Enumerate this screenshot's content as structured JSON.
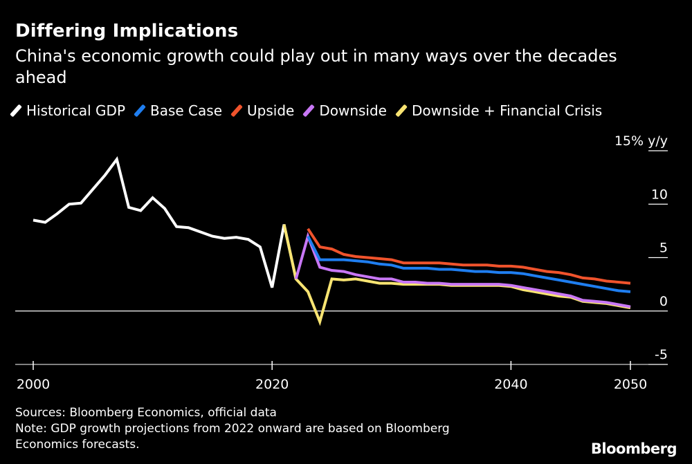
{
  "header": {
    "title": "Differing Implications",
    "subtitle": "China's economic growth could play out in many ways over the decades ahead"
  },
  "footer": {
    "sources": "Sources: Bloomberg Economics, official data",
    "note_line1": "Note: GDP growth projections from 2022 onward are based on Bloomberg",
    "note_line2": "Economics forecasts.",
    "brand": "Bloomberg"
  },
  "chart_data": {
    "type": "line",
    "ylim": [
      -5,
      15
    ],
    "xlim": [
      1999,
      2052
    ],
    "y_ticks": [
      {
        "value": 15,
        "label": "15% y/y"
      },
      {
        "value": 10,
        "label": "10"
      },
      {
        "value": 5,
        "label": "5"
      },
      {
        "value": 0,
        "label": "0"
      },
      {
        "value": -5,
        "label": "-5"
      }
    ],
    "x_ticks": [
      {
        "value": 2000,
        "label": "2000"
      },
      {
        "value": 2020,
        "label": "2020"
      },
      {
        "value": 2040,
        "label": "2040"
      },
      {
        "value": 2050,
        "label": "2050"
      }
    ],
    "legend_position": "top",
    "series": [
      {
        "name": "Historical GDP",
        "color": "#ffffff",
        "x": [
          2000,
          2001,
          2002,
          2003,
          2004,
          2005,
          2006,
          2007,
          2008,
          2009,
          2010,
          2011,
          2012,
          2013,
          2014,
          2015,
          2016,
          2017,
          2018,
          2019,
          2020,
          2021,
          2022
        ],
        "y": [
          8.5,
          8.3,
          9.1,
          10.0,
          10.1,
          11.4,
          12.7,
          14.2,
          9.7,
          9.4,
          10.6,
          9.6,
          7.9,
          7.8,
          7.4,
          7.0,
          6.8,
          6.9,
          6.7,
          6.0,
          2.2,
          8.1,
          3.0
        ]
      },
      {
        "name": "Downside + Financial Crisis",
        "color": "#f8e472",
        "x": [
          2021,
          2022,
          2023,
          2024,
          2025,
          2026,
          2027,
          2028,
          2029,
          2030,
          2031,
          2032,
          2033,
          2034,
          2035,
          2036,
          2037,
          2038,
          2039,
          2040,
          2041,
          2042,
          2043,
          2044,
          2045,
          2046,
          2047,
          2048,
          2049,
          2050
        ],
        "y": [
          8.1,
          3.0,
          1.8,
          -1.0,
          3.0,
          2.9,
          3.0,
          2.8,
          2.6,
          2.6,
          2.5,
          2.5,
          2.5,
          2.5,
          2.4,
          2.4,
          2.4,
          2.4,
          2.4,
          2.3,
          2.0,
          1.8,
          1.6,
          1.4,
          1.3,
          0.9,
          0.8,
          0.7,
          0.5,
          0.3
        ]
      },
      {
        "name": "Downside",
        "color": "#c877f5",
        "x": [
          2022,
          2023,
          2024,
          2025,
          2026,
          2027,
          2028,
          2029,
          2030,
          2031,
          2032,
          2033,
          2034,
          2035,
          2036,
          2037,
          2038,
          2039,
          2040,
          2041,
          2042,
          2043,
          2044,
          2045,
          2046,
          2047,
          2048,
          2049,
          2050
        ],
        "y": [
          3.0,
          7.0,
          4.1,
          3.8,
          3.7,
          3.4,
          3.2,
          3.0,
          3.0,
          2.7,
          2.7,
          2.6,
          2.6,
          2.5,
          2.5,
          2.5,
          2.5,
          2.5,
          2.4,
          2.2,
          2.0,
          1.8,
          1.6,
          1.4,
          1.0,
          0.9,
          0.8,
          0.6,
          0.4
        ]
      },
      {
        "name": "Base Case",
        "color": "#1f7ef0",
        "x": [
          2023,
          2024,
          2025,
          2026,
          2027,
          2028,
          2029,
          2030,
          2031,
          2032,
          2033,
          2034,
          2035,
          2036,
          2037,
          2038,
          2039,
          2040,
          2041,
          2042,
          2043,
          2044,
          2045,
          2046,
          2047,
          2048,
          2049,
          2050
        ],
        "y": [
          7.0,
          4.8,
          4.8,
          4.8,
          4.7,
          4.6,
          4.4,
          4.3,
          4.0,
          4.0,
          4.0,
          3.9,
          3.9,
          3.8,
          3.7,
          3.7,
          3.6,
          3.6,
          3.5,
          3.3,
          3.1,
          2.9,
          2.7,
          2.5,
          2.3,
          2.1,
          1.9,
          1.8
        ]
      },
      {
        "name": "Upside",
        "color": "#f0532c",
        "x": [
          2023,
          2024,
          2025,
          2026,
          2027,
          2028,
          2029,
          2030,
          2031,
          2032,
          2033,
          2034,
          2035,
          2036,
          2037,
          2038,
          2039,
          2040,
          2041,
          2042,
          2043,
          2044,
          2045,
          2046,
          2047,
          2048,
          2049,
          2050
        ],
        "y": [
          7.7,
          6.0,
          5.8,
          5.3,
          5.1,
          5.0,
          4.9,
          4.8,
          4.5,
          4.5,
          4.5,
          4.5,
          4.4,
          4.3,
          4.3,
          4.3,
          4.2,
          4.2,
          4.1,
          3.9,
          3.7,
          3.6,
          3.4,
          3.1,
          3.0,
          2.8,
          2.7,
          2.6
        ]
      }
    ],
    "legend_order": [
      "Historical GDP",
      "Base Case",
      "Upside",
      "Downside",
      "Downside + Financial Crisis"
    ]
  }
}
